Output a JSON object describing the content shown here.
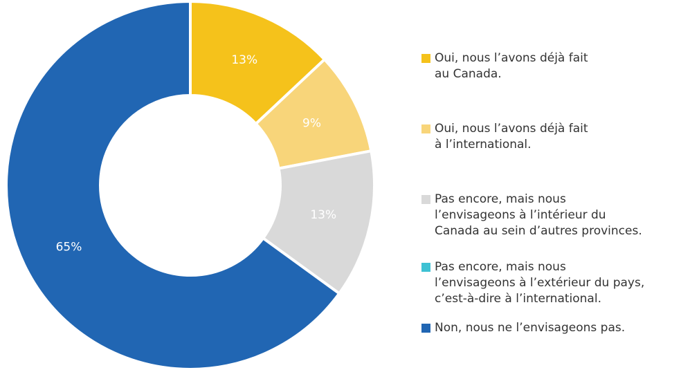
{
  "chart_data": {
    "type": "pie",
    "categories": [
      "Oui, nous l’avons déjà fait\nau Canada.",
      "Oui, nous l’avons déjà fait\nà l’international.",
      "Pas encore, mais nous\nl’envisageons à l’intérieur du\nCanada au sein d’autres provinces.",
      "Pas encore, mais nous\nl’envisageons à l’extérieur du pays,\nc’est-à-dire à l’international.",
      "Non, nous ne l’envisageons pas."
    ],
    "values": [
      13,
      9,
      13,
      0,
      65
    ],
    "value_labels": [
      "13%",
      "9%",
      "13%",
      null,
      "65%"
    ],
    "colors": [
      "#f5c21b",
      "#f8d57a",
      "#d9d9d9",
      "#3ec1d3",
      "#2166b3"
    ]
  }
}
